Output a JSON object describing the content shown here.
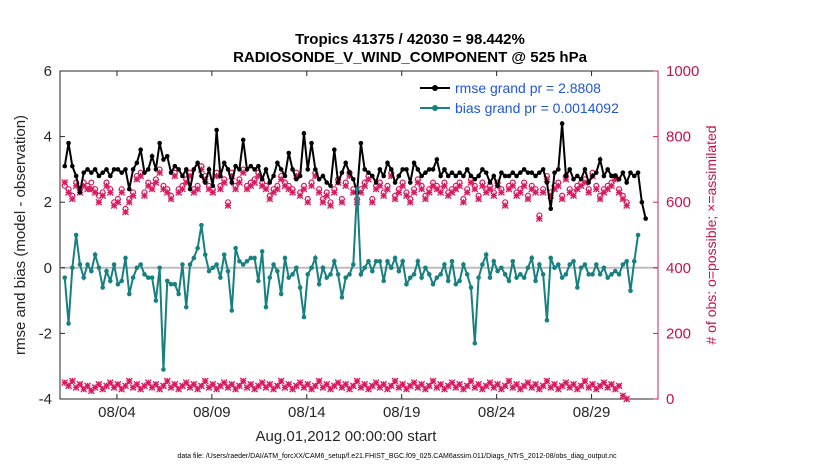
{
  "chart_data": {
    "type": "line",
    "title": "Tropics 41375 / 42030 = 98.442%",
    "subtitle": "RADIOSONDE_V_WIND_COMPONENT @ 525 hPa",
    "xlabel": "Aug.01,2012 00:00:00 start",
    "ylabel": "rmse and bias (model - observation)",
    "ylabel_right": "# of obs: o=possible; ×=assimilated",
    "xlim": [
      0,
      31.5
    ],
    "ylim": [
      -4,
      6
    ],
    "ylim_right": [
      0,
      1000
    ],
    "x_ticks": [
      3,
      8,
      13,
      18,
      23,
      28
    ],
    "x_tick_labels": [
      "08/04",
      "08/09",
      "08/14",
      "08/19",
      "08/24",
      "08/29"
    ],
    "y_ticks": [
      -4,
      -2,
      0,
      2,
      4,
      6
    ],
    "y_tick_labels": [
      "-4",
      "-2",
      "0",
      "2",
      "4",
      "6"
    ],
    "y_right_ticks": [
      0,
      200,
      400,
      600,
      800,
      1000
    ],
    "y_right_tick_labels": [
      "0",
      "200",
      "400",
      "600",
      "800",
      "1000"
    ],
    "zero_line": 0,
    "legend": [
      {
        "label": "rmse grand pr = 2.8808",
        "color": "#000000"
      },
      {
        "label": "bias grand pr = 0.0014092",
        "color": "#178080"
      }
    ],
    "series": [
      {
        "name": "rmse",
        "color": "#000000",
        "values": [
          3.1,
          3.8,
          3.1,
          2.8,
          2.3,
          2.9,
          3.0,
          2.9,
          3.0,
          2.8,
          2.9,
          3.0,
          2.8,
          3.0,
          3.0,
          2.9,
          3.0,
          2.4,
          3.0,
          3.2,
          3.6,
          2.9,
          3.0,
          3.4,
          3.0,
          3.8,
          3.3,
          3.4,
          2.9,
          3.1,
          3.0,
          2.8,
          3.0,
          2.4,
          3.0,
          3.2,
          2.8,
          2.6,
          3.0,
          2.5,
          4.2,
          2.8,
          3.2,
          3.0,
          2.6,
          3.1,
          3.0,
          3.9,
          3.0,
          3.1,
          3.0,
          3.1,
          2.7,
          3.0,
          2.6,
          2.8,
          3.2,
          3.0,
          2.8,
          3.5,
          3.0,
          2.7,
          2.8,
          4.1,
          3.0,
          3.8,
          3.0,
          2.7,
          2.8,
          2.6,
          2.5,
          3.6,
          2.6,
          2.9,
          3.2,
          2.9,
          2.7,
          2.3,
          3.8,
          3.0,
          2.9,
          2.8,
          2.6,
          3.0,
          2.8,
          3.2,
          3.0,
          2.6,
          2.8,
          3.0,
          3.0,
          2.6,
          3.2,
          3.0,
          2.8,
          2.9,
          3.0,
          3.0,
          3.3,
          2.8,
          3.0,
          2.8,
          2.9,
          2.8,
          2.9,
          2.8,
          3.0,
          2.8,
          2.7,
          2.8,
          3.0,
          2.9,
          2.6,
          2.8,
          2.5,
          2.9,
          2.8,
          2.8,
          2.9,
          2.8,
          2.9,
          3.0,
          2.9,
          2.9,
          2.8,
          2.9,
          3.0,
          2.6,
          1.8,
          2.9,
          3.0,
          4.4,
          2.8,
          3.0,
          2.7,
          2.8,
          2.7,
          3.0,
          2.6,
          2.8,
          2.9,
          3.3,
          2.8,
          3.0,
          2.8,
          2.8,
          2.7,
          2.9,
          2.6,
          2.9,
          2.8,
          2.9,
          2.0,
          1.5
        ],
        "x_start": 0.25,
        "x_step": 0.2
      },
      {
        "name": "bias",
        "color": "#178080",
        "values": [
          -0.3,
          -1.7,
          0.0,
          1.0,
          0.1,
          -0.3,
          0.1,
          -0.1,
          0.4,
          0.0,
          -0.6,
          -0.1,
          -0.4,
          0.1,
          -0.5,
          -0.4,
          0.3,
          -0.8,
          -0.3,
          0.0,
          0.1,
          -0.2,
          -0.3,
          -0.3,
          -1.0,
          0.0,
          -3.1,
          -0.4,
          -0.5,
          -0.5,
          -0.8,
          0.1,
          -1.2,
          0.1,
          0.3,
          0.6,
          1.3,
          0.4,
          -0.1,
          0.0,
          0.1,
          -0.3,
          0.4,
          -0.1,
          -1.3,
          0.6,
          0.2,
          0.1,
          0.2,
          0.3,
          0.3,
          -0.4,
          0.5,
          -1.2,
          -0.3,
          0.1,
          -0.1,
          -0.8,
          0.3,
          -0.3,
          -0.2,
          0.0,
          -0.6,
          -1.5,
          -0.2,
          0.0,
          0.3,
          -0.5,
          0.0,
          -0.3,
          -0.2,
          0.2,
          -0.2,
          -0.9,
          -0.3,
          -0.2,
          0.1,
          2.4,
          -0.2,
          0.0,
          0.2,
          -0.1,
          0.2,
          0.2,
          -0.4,
          0.2,
          0.0,
          0.3,
          -0.1,
          0.2,
          -0.5,
          -0.3,
          -0.2,
          0.2,
          -0.3,
          0.0,
          -0.2,
          -0.5,
          -0.3,
          -0.2,
          0.1,
          -0.4,
          0.2,
          -0.5,
          -0.4,
          0.1,
          -0.2,
          -0.6,
          -2.3,
          -0.3,
          0.1,
          0.4,
          -0.3,
          0.2,
          -0.1,
          0.0,
          -0.2,
          -0.4,
          0.2,
          -0.3,
          -0.2,
          -0.3,
          0.0,
          0.3,
          -0.4,
          0.1,
          -0.2,
          -1.6,
          0.3,
          0.0,
          0.1,
          -0.3,
          -0.2,
          0.1,
          0.2,
          -0.6,
          0.0,
          0.1,
          -0.2,
          -0.2,
          0.1,
          -0.2,
          0.0,
          -0.3,
          -0.2,
          -0.1,
          -0.2,
          0.1,
          0.2,
          -0.7,
          0.2,
          1.0
        ],
        "x_start": 0.25,
        "x_step": 0.2
      }
    ],
    "obs_possible": {
      "color": "#d81b60",
      "marker": "o",
      "values": [
        650,
        640,
        620,
        660,
        640,
        660,
        650,
        660,
        640,
        620,
        630,
        660,
        640,
        600,
        610,
        640,
        580,
        610,
        630,
        680,
        690,
        630,
        660,
        650,
        670,
        700,
        650,
        640,
        620,
        690,
        640,
        650,
        670,
        690,
        640,
        650,
        710,
        680,
        650,
        640,
        690,
        650,
        670,
        600,
        690,
        650,
        670,
        700,
        650,
        660,
        670,
        690,
        660,
        650,
        620,
        640,
        650,
        680,
        660,
        650,
        640,
        690,
        630,
        650,
        610,
        660,
        690,
        640,
        610,
        630,
        600,
        640,
        670,
        610,
        660,
        690,
        640,
        610,
        640,
        660,
        680,
        610,
        650,
        660,
        630,
        650,
        690,
        620,
        640,
        660,
        630,
        610,
        640,
        670,
        650,
        620,
        640,
        660,
        650,
        640,
        660,
        630,
        640,
        650,
        660,
        610,
        640,
        670,
        650,
        620,
        660,
        640,
        650,
        630,
        660,
        640,
        600,
        650,
        660,
        630,
        640,
        660,
        620,
        650,
        640,
        560,
        640,
        680,
        630,
        650,
        660,
        620,
        680,
        640,
        630,
        650,
        660,
        670,
        640,
        690,
        650,
        620,
        640,
        650,
        660,
        680,
        640,
        620,
        600
      ],
      "x_start": 0.25,
      "x_step": 0.2
    },
    "obs_assimilated": {
      "color": "#d81b60",
      "marker": "x",
      "values": [
        660,
        630,
        610,
        650,
        630,
        650,
        640,
        640,
        630,
        600,
        620,
        650,
        630,
        590,
        600,
        630,
        570,
        600,
        620,
        670,
        680,
        620,
        650,
        640,
        660,
        690,
        640,
        630,
        610,
        680,
        630,
        640,
        660,
        680,
        630,
        640,
        700,
        670,
        640,
        630,
        680,
        640,
        660,
        590,
        680,
        640,
        660,
        690,
        640,
        650,
        660,
        680,
        650,
        640,
        610,
        630,
        640,
        670,
        650,
        640,
        630,
        680,
        620,
        640,
        600,
        650,
        680,
        630,
        600,
        620,
        590,
        630,
        660,
        600,
        650,
        680,
        630,
        600,
        630,
        650,
        670,
        600,
        640,
        650,
        620,
        640,
        680,
        610,
        630,
        650,
        620,
        600,
        630,
        660,
        640,
        610,
        630,
        650,
        640,
        630,
        650,
        620,
        630,
        640,
        650,
        600,
        630,
        660,
        640,
        610,
        650,
        630,
        640,
        620,
        650,
        630,
        590,
        640,
        650,
        620,
        630,
        650,
        610,
        640,
        630,
        550,
        630,
        670,
        620,
        640,
        650,
        610,
        670,
        630,
        620,
        640,
        650,
        660,
        630,
        680,
        640,
        610,
        630,
        640,
        650,
        670,
        630,
        610,
        590
      ],
      "x_start": 0.25,
      "x_step": 0.2
    },
    "obs_low": {
      "color": "#d81b60",
      "values": [
        50,
        40,
        55,
        35,
        45,
        30,
        40,
        25,
        35,
        45,
        30,
        40,
        50,
        35,
        45,
        30,
        40,
        55,
        35,
        45,
        30,
        40,
        50,
        35,
        45,
        30,
        40,
        55,
        35,
        45,
        30,
        40,
        50,
        35,
        45,
        30,
        40,
        55,
        35,
        45,
        30,
        40,
        50,
        35,
        45,
        30,
        40,
        55,
        35,
        45,
        30,
        40,
        50,
        35,
        45,
        30,
        40,
        55,
        35,
        45,
        30,
        40,
        50,
        35,
        45,
        30,
        40,
        55,
        35,
        45,
        30,
        40,
        50,
        35,
        45,
        30,
        40,
        55,
        35,
        45,
        30,
        40,
        50,
        35,
        45,
        30,
        40,
        55,
        35,
        45,
        30,
        40,
        50,
        35,
        45,
        30,
        40,
        55,
        35,
        45,
        30,
        40,
        50,
        35,
        45,
        30,
        40,
        55,
        35,
        45,
        30,
        40,
        50,
        35,
        45,
        30,
        40,
        55,
        35,
        45,
        30,
        40,
        50,
        35,
        45,
        30,
        40,
        55,
        35,
        45,
        30,
        40,
        50,
        35,
        45,
        30,
        40,
        55,
        35,
        45,
        30,
        40,
        50,
        35,
        45,
        30,
        40,
        10,
        0
      ],
      "x_start": 0.25,
      "x_step": 0.2
    }
  },
  "footnote": "data file: /Users/raeder/DAI/ATM_forcXX/CAM6_setup/f.e21.FHIST_BGC.f09_025.CAM6assim.011/Diags_NTrS_2012-08/obs_diag_output.nc",
  "colors": {
    "rmse": "#000000",
    "bias": "#178080",
    "obs": "#d81b60",
    "legend_text": "#1f57d6",
    "right_axis": "#c8104f"
  }
}
